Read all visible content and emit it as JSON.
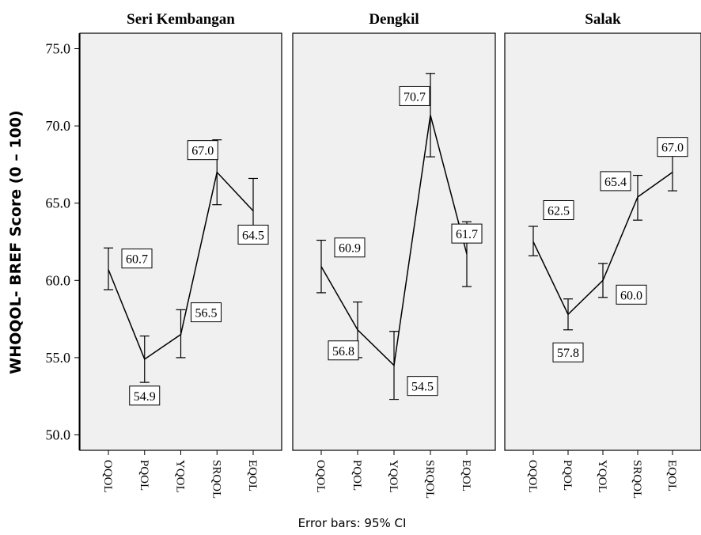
{
  "chart_data": {
    "type": "line",
    "ylabel": "WHOQOL- BREF Score (0 – 100)",
    "footnote": "Error bars: 95% CI",
    "ylim": [
      49,
      76
    ],
    "yticks": [
      50,
      55,
      60,
      65,
      70,
      75
    ],
    "ytick_labels": [
      "50.0",
      "55.0",
      "60.0",
      "65.0",
      "70.0",
      "75.0"
    ],
    "categories": [
      "OQOL",
      "PQOL",
      "YQOL",
      "SRQOL",
      "EQOL"
    ],
    "panels": [
      {
        "title": "Seri Kembangan",
        "values": [
          60.7,
          54.9,
          56.5,
          67.0,
          64.5
        ],
        "ci_low": [
          59.4,
          53.4,
          55.0,
          64.9,
          62.4
        ],
        "ci_high": [
          62.1,
          56.4,
          58.1,
          69.1,
          66.6
        ],
        "labels": [
          "60.7",
          "54.9",
          "56.5",
          "67.0",
          "64.5"
        ]
      },
      {
        "title": "Dengkil",
        "values": [
          60.9,
          56.8,
          54.5,
          70.7,
          61.7
        ],
        "ci_low": [
          59.2,
          55.0,
          52.3,
          68.0,
          59.6
        ],
        "ci_high": [
          62.6,
          58.6,
          56.7,
          73.4,
          63.8
        ],
        "labels": [
          "60.9",
          "56.8",
          "54.5",
          "70.7",
          "61.7"
        ]
      },
      {
        "title": "Salak",
        "values": [
          62.5,
          57.8,
          60.0,
          65.4,
          67.0
        ],
        "ci_low": [
          61.6,
          56.8,
          58.9,
          63.9,
          65.8
        ],
        "ci_high": [
          63.5,
          58.8,
          61.1,
          66.8,
          68.2
        ],
        "labels": [
          "62.5",
          "57.8",
          "60.0",
          "65.4",
          "67.0"
        ]
      }
    ]
  }
}
